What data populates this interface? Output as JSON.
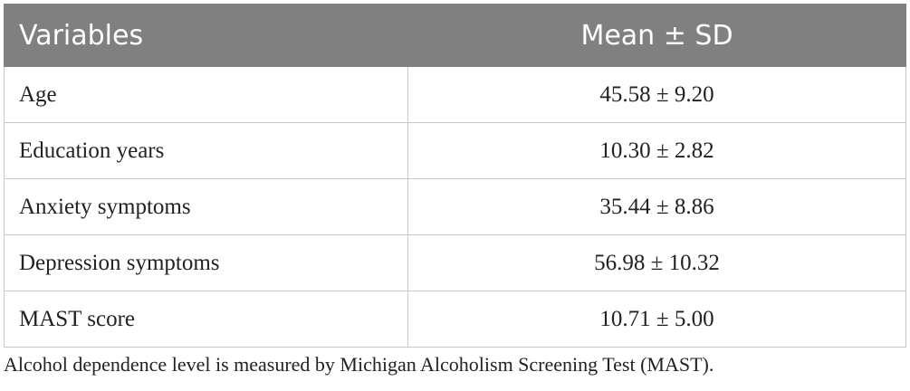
{
  "table": {
    "header": [
      "Variables",
      "Mean ± SD"
    ],
    "rows": [
      [
        "Age",
        "45.58 ± 9.20"
      ],
      [
        "Education years",
        "10.30 ± 2.82"
      ],
      [
        "Anxiety symptoms",
        "35.44 ± 8.86"
      ],
      [
        "Depression symptoms",
        "56.98 ± 10.32"
      ],
      [
        "MAST score",
        "10.71 ± 5.00"
      ]
    ]
  },
  "footnote": "Alcohol dependence level is measured by Michigan Alcoholism Screening Test (MAST)."
}
